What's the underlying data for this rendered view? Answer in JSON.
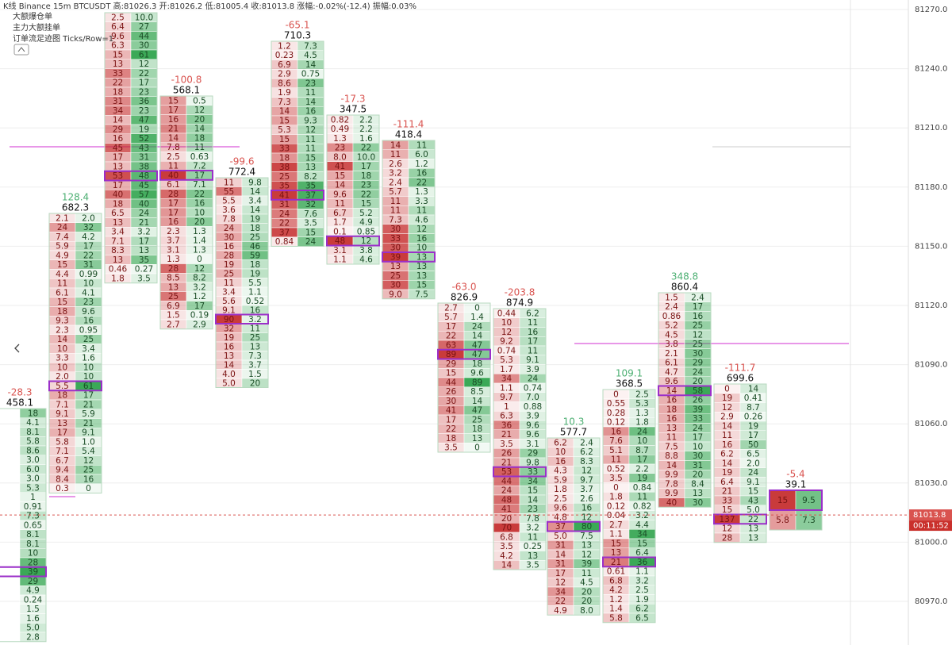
{
  "header": {
    "title": "K线  Binance 15m BTCUSDT 高:81026.3  开:81026.2  低:81005.4  收:81013.8  涨幅:-0.02%(-12.4)  振幅:0.03%",
    "lines": [
      "大额爆仓单",
      "主力大额挂单",
      "订单流足迹图   Ticks/Row=1"
    ]
  },
  "price_axis": {
    "ticks": [
      "81270.0",
      "81240.0",
      "81210.0",
      "81180.0",
      "81150.0",
      "81120.0",
      "81090.0",
      "81060.0",
      "81030.0",
      "81000.0",
      "80970.0"
    ],
    "last_price": "81013.8",
    "countdown": "00:11:52"
  },
  "columns": [
    {
      "delta": "-28.3",
      "volume": "458.1",
      "rows": [
        [
          null,
          "18"
        ],
        [
          null,
          "4.1"
        ],
        [
          null,
          "8.1"
        ],
        [
          null,
          "5.8"
        ],
        [
          null,
          "8.6"
        ],
        [
          null,
          "3.0"
        ],
        [
          null,
          "6.0"
        ],
        [
          null,
          "3.0"
        ],
        [
          null,
          "5.3"
        ],
        [
          null,
          "1"
        ],
        [
          null,
          "0.91"
        ],
        [
          null,
          "7.3"
        ],
        [
          null,
          "0.65"
        ],
        [
          null,
          "8.1"
        ],
        [
          null,
          "8.1"
        ],
        [
          null,
          "10"
        ],
        [
          null,
          "28"
        ],
        [
          null,
          "39"
        ],
        [
          null,
          "29"
        ],
        [
          null,
          "4.9"
        ],
        [
          null,
          "0.24"
        ],
        [
          null,
          "1.5"
        ],
        [
          null,
          "1.6"
        ],
        [
          null,
          "5.0"
        ],
        [
          null,
          "2.8"
        ]
      ]
    },
    {
      "delta": "128.4",
      "volume": "682.3",
      "rows": [
        [
          "2.1",
          "2.0"
        ],
        [
          "24",
          "32"
        ],
        [
          "7.4",
          "4.2"
        ],
        [
          "5.9",
          "17"
        ],
        [
          "4.9",
          "22"
        ],
        [
          "15",
          "31"
        ],
        [
          "4.4",
          "0.99"
        ],
        [
          "11",
          "10"
        ],
        [
          "6.1",
          "4.1"
        ],
        [
          "15",
          "23"
        ],
        [
          "18",
          "9.6"
        ],
        [
          "9.3",
          "16"
        ],
        [
          "2.3",
          "0.95"
        ],
        [
          "14",
          "25"
        ],
        [
          "10",
          "3.4"
        ],
        [
          "3.3",
          "1.6"
        ],
        [
          "10",
          "10"
        ],
        [
          "2.0",
          "10"
        ],
        [
          "5.5",
          "61"
        ],
        [
          "18",
          "17"
        ],
        [
          "7.1",
          "21"
        ],
        [
          "9.1",
          "5.9"
        ],
        [
          "13",
          "21"
        ],
        [
          "17",
          "9.1"
        ],
        [
          "5.8",
          "1.0"
        ],
        [
          "7.1",
          "5.4"
        ],
        [
          "6.7",
          "12"
        ],
        [
          "9.4",
          "25"
        ],
        [
          "8.4",
          "16"
        ],
        [
          "0.3",
          "0"
        ]
      ]
    },
    {
      "rows": [
        [
          "2.5",
          "10.0"
        ],
        [
          "6.4",
          "27"
        ],
        [
          "9.6",
          "44"
        ],
        [
          "6.3",
          "30"
        ],
        [
          "15",
          "61"
        ],
        [
          "13",
          "12"
        ],
        [
          "33",
          "22"
        ],
        [
          "22",
          "17"
        ],
        [
          "18",
          "23"
        ],
        [
          "31",
          "36"
        ],
        [
          "34",
          "23"
        ],
        [
          "14",
          "47"
        ],
        [
          "29",
          "19"
        ],
        [
          "16",
          "52"
        ],
        [
          "45",
          "43"
        ],
        [
          "17",
          "31"
        ],
        [
          "13",
          "38"
        ],
        [
          "53",
          "48"
        ],
        [
          "17",
          "45"
        ],
        [
          "40",
          "57"
        ],
        [
          "18",
          "40"
        ],
        [
          "6.5",
          "24"
        ],
        [
          "13",
          "21"
        ],
        [
          "3.4",
          "3.2"
        ],
        [
          "7.1",
          "17"
        ],
        [
          "8.3",
          "13"
        ],
        [
          "13",
          "35"
        ],
        [
          "0.46",
          "0.27"
        ],
        [
          "1.8",
          "3.5"
        ]
      ]
    },
    {
      "delta": "-100.8",
      "volume": "568.1",
      "rows": [
        [
          "15",
          "0.5"
        ],
        [
          "17",
          "12"
        ],
        [
          "16",
          "20"
        ],
        [
          "21",
          "14"
        ],
        [
          "14",
          "18"
        ],
        [
          "7.8",
          "11"
        ],
        [
          "2.5",
          "0.63"
        ],
        [
          "11",
          "7.2"
        ],
        [
          "40",
          "17"
        ],
        [
          "6.1",
          "7.1"
        ],
        [
          "28",
          "22"
        ],
        [
          "17",
          "16"
        ],
        [
          "17",
          "10"
        ],
        [
          "16",
          "20"
        ],
        [
          "2.3",
          "1.3"
        ],
        [
          "3.7",
          "1.4"
        ],
        [
          "3.1",
          "1.3"
        ],
        [
          "1.3",
          "0"
        ],
        [
          "28",
          "12"
        ],
        [
          "8.5",
          "8.2"
        ],
        [
          "13",
          "3.2"
        ],
        [
          "25",
          "1.2"
        ],
        [
          "6.9",
          "17"
        ],
        [
          "1.5",
          "0.19"
        ],
        [
          "2.7",
          "2.9"
        ]
      ]
    },
    {
      "delta": "-99.6",
      "volume": "772.4",
      "rows": [
        [
          "11",
          "9.8"
        ],
        [
          "55",
          "14"
        ],
        [
          "5.5",
          "3.4"
        ],
        [
          "3.6",
          "14"
        ],
        [
          "7.8",
          "19"
        ],
        [
          "24",
          "18"
        ],
        [
          "30",
          "25"
        ],
        [
          "16",
          "46"
        ],
        [
          "28",
          "59"
        ],
        [
          "19",
          "18"
        ],
        [
          "25",
          "19"
        ],
        [
          "11",
          "5.5"
        ],
        [
          "3.4",
          "1.1"
        ],
        [
          "5.6",
          "0.52"
        ],
        [
          "9.1",
          "16"
        ],
        [
          "90",
          "3.2"
        ],
        [
          "32",
          "11"
        ],
        [
          "19",
          "25"
        ],
        [
          "16",
          "13"
        ],
        [
          "13",
          "7.3"
        ],
        [
          "14",
          "3.7"
        ],
        [
          "4.0",
          "1.5"
        ],
        [
          "5.0",
          "20"
        ]
      ]
    },
    {
      "delta": "-65.1",
      "volume": "710.3",
      "rows": [
        [
          "1.2",
          "7.3"
        ],
        [
          "0.23",
          "4.5"
        ],
        [
          "6.9",
          "14"
        ],
        [
          "2.9",
          "0.75"
        ],
        [
          "8.6",
          "23"
        ],
        [
          "1.9",
          "11"
        ],
        [
          "7.3",
          "14"
        ],
        [
          "14",
          "16"
        ],
        [
          "15",
          "9.3"
        ],
        [
          "5.3",
          "12"
        ],
        [
          "15",
          "11"
        ],
        [
          "33",
          "11"
        ],
        [
          "18",
          "15"
        ],
        [
          "38",
          "13"
        ],
        [
          "25",
          "8.2"
        ],
        [
          "35",
          "35"
        ],
        [
          "41",
          "37"
        ],
        [
          "31",
          "32"
        ],
        [
          "24",
          "7.6"
        ],
        [
          "22",
          "3.5"
        ],
        [
          "37",
          "15"
        ],
        [
          "0.84",
          "24"
        ]
      ]
    },
    {
      "delta": "-17.3",
      "volume": "347.5",
      "rows": [
        [
          "0.82",
          "2.2"
        ],
        [
          "0.49",
          "2.2"
        ],
        [
          "1.3",
          "1.6"
        ],
        [
          "23",
          "22"
        ],
        [
          "8.0",
          "10.0"
        ],
        [
          "41",
          "17"
        ],
        [
          "15",
          "18"
        ],
        [
          "14",
          "23"
        ],
        [
          "9.6",
          "22"
        ],
        [
          "11",
          "15"
        ],
        [
          "6.7",
          "5.2"
        ],
        [
          "1.7",
          "4.9"
        ],
        [
          "0.1",
          "0.85"
        ],
        [
          "48",
          "12"
        ],
        [
          "3.1",
          "3.8"
        ],
        [
          "1.1",
          "4.6"
        ]
      ]
    },
    {
      "delta": "-111.4",
      "volume": "418.4",
      "rows": [
        [
          "14",
          "11"
        ],
        [
          "11",
          "6.0"
        ],
        [
          "2.6",
          "1.2"
        ],
        [
          "3.2",
          "16"
        ],
        [
          "2.4",
          "22"
        ],
        [
          "5.7",
          "1.3"
        ],
        [
          "11",
          "3.3"
        ],
        [
          "11",
          "11"
        ],
        [
          "7.3",
          "4.6"
        ],
        [
          "30",
          "12"
        ],
        [
          "33",
          "16"
        ],
        [
          "30",
          "10"
        ],
        [
          "39",
          "13"
        ],
        [
          "13",
          "13"
        ],
        [
          "25",
          "13"
        ],
        [
          "30",
          "15"
        ],
        [
          "9.0",
          "7.5"
        ]
      ]
    },
    {
      "delta": "-63.0",
      "volume": "826.9",
      "rows": [
        [
          "2.7",
          "0"
        ],
        [
          "5.7",
          "1.4"
        ],
        [
          "17",
          "24"
        ],
        [
          "22",
          "14"
        ],
        [
          "63",
          "47"
        ],
        [
          "89",
          "47"
        ],
        [
          "29",
          "18"
        ],
        [
          "15",
          "9.6"
        ],
        [
          "44",
          "89"
        ],
        [
          "26",
          "8.5"
        ],
        [
          "30",
          "14"
        ],
        [
          "41",
          "47"
        ],
        [
          "17",
          "25"
        ],
        [
          "22",
          "18"
        ],
        [
          "18",
          "13"
        ],
        [
          "3.5",
          "0"
        ]
      ]
    },
    {
      "delta": "-203.8",
      "volume": "874.9",
      "rows": [
        [
          "0.44",
          "6.2"
        ],
        [
          "10",
          "11"
        ],
        [
          "12",
          "16"
        ],
        [
          "9.2",
          "17"
        ],
        [
          "0.74",
          "11"
        ],
        [
          "5.3",
          "9.1"
        ],
        [
          "1.7",
          "3.9"
        ],
        [
          "34",
          "24"
        ],
        [
          "1.1",
          "0.74"
        ],
        [
          "9.7",
          "7.0"
        ],
        [
          "1",
          "0.88"
        ],
        [
          "6.3",
          "3.9"
        ],
        [
          "36",
          "9.6"
        ],
        [
          "21",
          "9.6"
        ],
        [
          "3.5",
          "3.1"
        ],
        [
          "26",
          "29"
        ],
        [
          "21",
          "9.8"
        ],
        [
          "53",
          "33"
        ],
        [
          "44",
          "34"
        ],
        [
          "24",
          "15"
        ],
        [
          "48",
          "14"
        ],
        [
          "41",
          "23"
        ],
        [
          "20",
          "7.8"
        ],
        [
          "70",
          "3.2"
        ],
        [
          "6.8",
          "11"
        ],
        [
          "3.5",
          "0.25"
        ],
        [
          "4.2",
          "13"
        ],
        [
          "14",
          "3.5"
        ]
      ]
    },
    {
      "delta": "10.3",
      "volume": "577.7",
      "rows": [
        [
          "6.2",
          "2.4"
        ],
        [
          "10",
          "6.2"
        ],
        [
          "16",
          "8.3"
        ],
        [
          "4.3",
          "12"
        ],
        [
          "5.9",
          "9.7"
        ],
        [
          "1.8",
          "3.7"
        ],
        [
          "2.5",
          "2.6"
        ],
        [
          "9.6",
          "16"
        ],
        [
          "4.8",
          "12"
        ],
        [
          "37",
          "80"
        ],
        [
          "5.0",
          "7.5"
        ],
        [
          "31",
          "13"
        ],
        [
          "14",
          "12"
        ],
        [
          "31",
          "39"
        ],
        [
          "17",
          "11"
        ],
        [
          "12",
          "4.5"
        ],
        [
          "34",
          "20"
        ],
        [
          "22",
          "20"
        ],
        [
          "4.9",
          "8.0"
        ]
      ]
    },
    {
      "delta": "109.1",
      "volume": "368.5",
      "rows": [
        [
          "0",
          "2.5"
        ],
        [
          "0.55",
          "5.3"
        ],
        [
          "0.28",
          "1.3"
        ],
        [
          "0.12",
          "1.8"
        ],
        [
          "16",
          "24"
        ],
        [
          "7.6",
          "10"
        ],
        [
          "5.1",
          "8.7"
        ],
        [
          "11",
          "17"
        ],
        [
          "0.52",
          "2.2"
        ],
        [
          "3.5",
          "19"
        ],
        [
          "0",
          "0.84"
        ],
        [
          "1.8",
          "11"
        ],
        [
          "0.12",
          "0.82"
        ],
        [
          "0.04",
          "3.2"
        ],
        [
          "2.7",
          "4.4"
        ],
        [
          "1.1",
          "34"
        ],
        [
          "15",
          "15"
        ],
        [
          "13",
          "6.4"
        ],
        [
          "21",
          "36"
        ],
        [
          "0.61",
          "1.1"
        ],
        [
          "6.8",
          "3.2"
        ],
        [
          "4.2",
          "2.5"
        ],
        [
          "1.2",
          "1.9"
        ],
        [
          "1.4",
          "6.2"
        ],
        [
          "5.8",
          "6.5"
        ]
      ]
    },
    {
      "delta": "348.8",
      "volume": "860.4",
      "rows": [
        [
          "1.5",
          "2.4"
        ],
        [
          "2.4",
          "17"
        ],
        [
          "0.86",
          "16"
        ],
        [
          "5.2",
          "25"
        ],
        [
          "4.5",
          "12"
        ],
        [
          "3.8",
          "25"
        ],
        [
          "2.1",
          "30"
        ],
        [
          "6.1",
          "29"
        ],
        [
          "4.7",
          "24"
        ],
        [
          "9.6",
          "20"
        ],
        [
          "14",
          "58"
        ],
        [
          "16",
          "26"
        ],
        [
          "18",
          "39"
        ],
        [
          "16",
          "33"
        ],
        [
          "13",
          "24"
        ],
        [
          "11",
          "17"
        ],
        [
          "7.5",
          "10"
        ],
        [
          "8.8",
          "30"
        ],
        [
          "14",
          "31"
        ],
        [
          "9.9",
          "20"
        ],
        [
          "7.8",
          "8.4"
        ],
        [
          "9.9",
          "13"
        ],
        [
          "40",
          "30"
        ]
      ]
    },
    {
      "delta": "-111.7",
      "volume": "699.6",
      "rows": [
        [
          "0",
          "14"
        ],
        [
          "19",
          "0.41"
        ],
        [
          "12",
          "8.7"
        ],
        [
          "2.9",
          "0.26"
        ],
        [
          "14",
          "19"
        ],
        [
          "11",
          "17"
        ],
        [
          "16",
          "50"
        ],
        [
          "6.2",
          "6.5"
        ],
        [
          "14",
          "2.0"
        ],
        [
          "19",
          "24"
        ],
        [
          "6.4",
          "9.1"
        ],
        [
          "21",
          "15"
        ],
        [
          "33",
          "43"
        ],
        [
          "15",
          "5.0"
        ],
        [
          "137",
          "22"
        ],
        [
          "12",
          "13"
        ],
        [
          "28",
          "13"
        ]
      ]
    },
    {
      "delta": "-5.4",
      "volume": "39.1",
      "rows": [
        [
          "15",
          "9.5"
        ],
        [
          "5.8",
          "7.3"
        ]
      ]
    }
  ]
}
